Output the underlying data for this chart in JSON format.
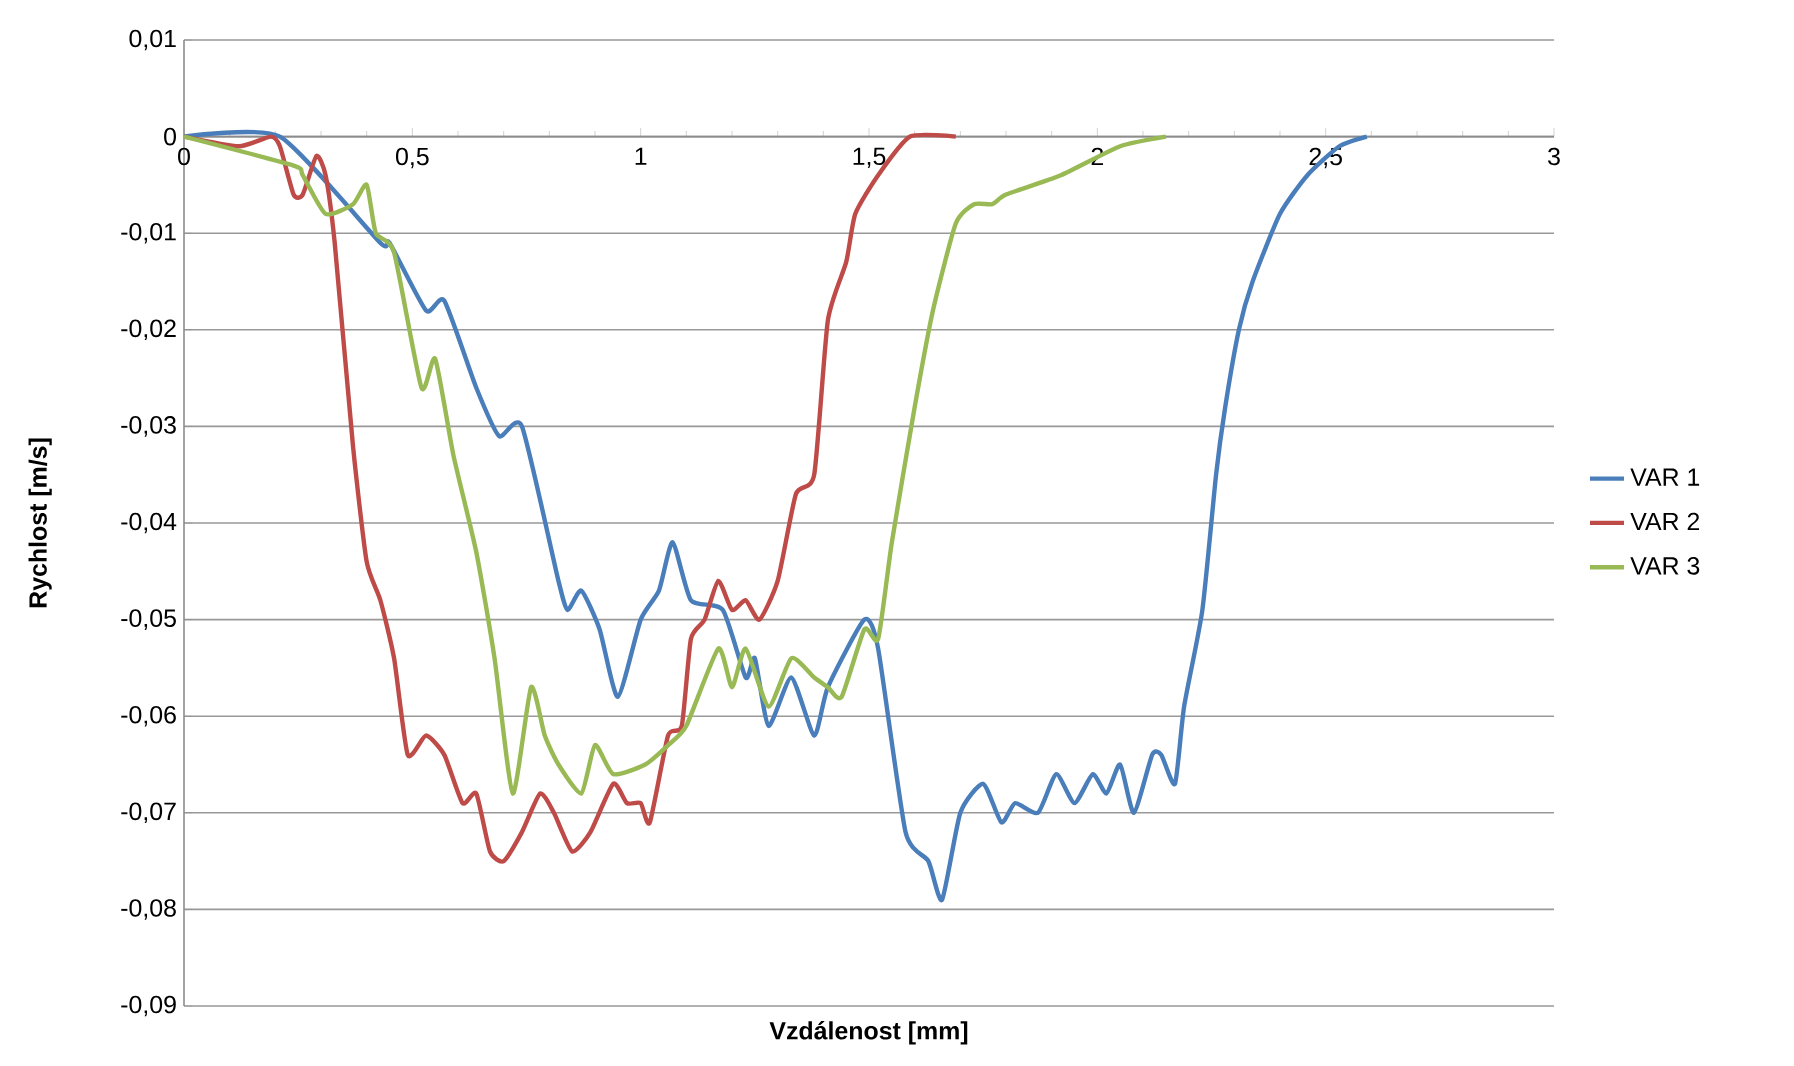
{
  "chart_data": {
    "type": "line",
    "xlabel": "Vzdálenost [mm]",
    "ylabel": "Rychlost [m/s]",
    "xlim": [
      0,
      3
    ],
    "ylim": [
      -0.09,
      0.01
    ],
    "xticks": [
      0,
      {
        "value": 0.5,
        "label": "0,5"
      },
      1,
      {
        "value": 1.5,
        "label": "1,5"
      },
      2,
      {
        "value": 2.5,
        "label": "2,5"
      },
      3
    ],
    "yticks": [
      {
        "value": 0.01,
        "label": "0,01"
      },
      0,
      {
        "value": -0.01,
        "label": "-0,01"
      },
      {
        "value": -0.02,
        "label": "-0,02"
      },
      {
        "value": -0.03,
        "label": "-0,03"
      },
      {
        "value": -0.04,
        "label": "-0,04"
      },
      {
        "value": -0.05,
        "label": "-0,05"
      },
      {
        "value": -0.06,
        "label": "-0,06"
      },
      {
        "value": -0.07,
        "label": "-0,07"
      },
      {
        "value": -0.08,
        "label": "-0,08"
      },
      {
        "value": -0.09,
        "label": "-0,09"
      }
    ],
    "grid": "y",
    "legend": "right",
    "series": [
      {
        "name": "VAR 1",
        "color": "#4a7ebb",
        "x": [
          0,
          0.21,
          0.43,
          0.45,
          0.53,
          0.57,
          0.64,
          0.69,
          0.74,
          0.82,
          0.84,
          0.87,
          0.91,
          0.95,
          1.0,
          1.04,
          1.07,
          1.11,
          1.18,
          1.23,
          1.25,
          1.28,
          1.33,
          1.38,
          1.41,
          1.49,
          1.52,
          1.58,
          1.63,
          1.66,
          1.7,
          1.75,
          1.79,
          1.82,
          1.87,
          1.91,
          1.95,
          1.99,
          2.02,
          2.05,
          2.08,
          2.12,
          2.14,
          2.17,
          2.19,
          2.23,
          2.26,
          2.28,
          2.31,
          2.34,
          2.4,
          2.46,
          2.53,
          2.59
        ],
        "values": [
          0,
          0,
          -0.011,
          -0.011,
          -0.018,
          -0.017,
          -0.026,
          -0.031,
          -0.03,
          -0.046,
          -0.049,
          -0.047,
          -0.051,
          -0.058,
          -0.05,
          -0.047,
          -0.042,
          -0.048,
          -0.049,
          -0.056,
          -0.054,
          -0.061,
          -0.056,
          -0.062,
          -0.057,
          -0.05,
          -0.053,
          -0.072,
          -0.075,
          -0.079,
          -0.07,
          -0.067,
          -0.071,
          -0.069,
          -0.07,
          -0.066,
          -0.069,
          -0.066,
          -0.068,
          -0.065,
          -0.07,
          -0.064,
          -0.064,
          -0.067,
          -0.059,
          -0.049,
          -0.035,
          -0.028,
          -0.02,
          -0.015,
          -0.008,
          -0.004,
          -0.001,
          0
        ]
      },
      {
        "name": "VAR 2",
        "color": "#be4b48",
        "x": [
          0,
          0.12,
          0.19,
          0.21,
          0.24,
          0.26,
          0.29,
          0.31,
          0.33,
          0.37,
          0.4,
          0.43,
          0.46,
          0.49,
          0.53,
          0.57,
          0.61,
          0.64,
          0.67,
          0.7,
          0.74,
          0.78,
          0.81,
          0.85,
          0.89,
          0.94,
          0.97,
          1.0,
          1.02,
          1.06,
          1.09,
          1.11,
          1.14,
          1.17,
          1.2,
          1.23,
          1.26,
          1.3,
          1.34,
          1.38,
          1.41,
          1.45,
          1.47,
          1.52,
          1.59,
          1.69
        ],
        "values": [
          0,
          -0.001,
          0,
          -0.001,
          -0.006,
          -0.006,
          -0.002,
          -0.004,
          -0.011,
          -0.032,
          -0.044,
          -0.048,
          -0.054,
          -0.064,
          -0.062,
          -0.064,
          -0.069,
          -0.068,
          -0.074,
          -0.075,
          -0.072,
          -0.068,
          -0.07,
          -0.074,
          -0.072,
          -0.067,
          -0.069,
          -0.069,
          -0.071,
          -0.062,
          -0.061,
          -0.052,
          -0.05,
          -0.046,
          -0.049,
          -0.048,
          -0.05,
          -0.046,
          -0.037,
          -0.035,
          -0.019,
          -0.013,
          -0.008,
          -0.004,
          0,
          0
        ]
      },
      {
        "name": "VAR 3",
        "color": "#98b954",
        "x": [
          0,
          0.24,
          0.26,
          0.31,
          0.37,
          0.4,
          0.42,
          0.46,
          0.52,
          0.55,
          0.59,
          0.64,
          0.68,
          0.72,
          0.76,
          0.79,
          0.82,
          0.87,
          0.9,
          0.94,
          1.01,
          1.06,
          1.1,
          1.17,
          1.2,
          1.23,
          1.28,
          1.33,
          1.38,
          1.41,
          1.44,
          1.49,
          1.52,
          1.55,
          1.6,
          1.64,
          1.69,
          1.73,
          1.77,
          1.8,
          1.92,
          2.05,
          2.15
        ],
        "values": [
          0,
          -0.003,
          -0.004,
          -0.008,
          -0.007,
          -0.005,
          -0.01,
          -0.012,
          -0.026,
          -0.023,
          -0.033,
          -0.043,
          -0.054,
          -0.068,
          -0.057,
          -0.062,
          -0.065,
          -0.068,
          -0.063,
          -0.066,
          -0.065,
          -0.063,
          -0.061,
          -0.053,
          -0.057,
          -0.053,
          -0.059,
          -0.054,
          -0.056,
          -0.057,
          -0.058,
          -0.051,
          -0.052,
          -0.042,
          -0.028,
          -0.018,
          -0.009,
          -0.007,
          -0.007,
          -0.006,
          -0.004,
          -0.001,
          0
        ]
      }
    ]
  }
}
